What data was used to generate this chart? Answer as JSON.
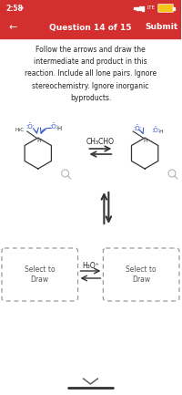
{
  "bg_color": "#ffffff",
  "status_bar_color": "#d32f2f",
  "header_color": "#d32f2f",
  "status_time": "2:58",
  "header_text": "Question 14 of 15",
  "submit_text": "Submit",
  "instruction": "Follow the arrows and draw the\nintermediate and product in this\nreaction. Include all lone pairs. Ignore\nstereochemistry. Ignore inorganic\nbyproducts.",
  "reagent_top": "CH₃CHO",
  "reagent_bottom": "H₃O⁺",
  "select_to_draw": "Select to\nDraw",
  "arrow_color": "#333333",
  "dashed_box_color": "#999999",
  "text_color": "#222222",
  "blue_color": "#3355cc",
  "mol_color": "#333333"
}
